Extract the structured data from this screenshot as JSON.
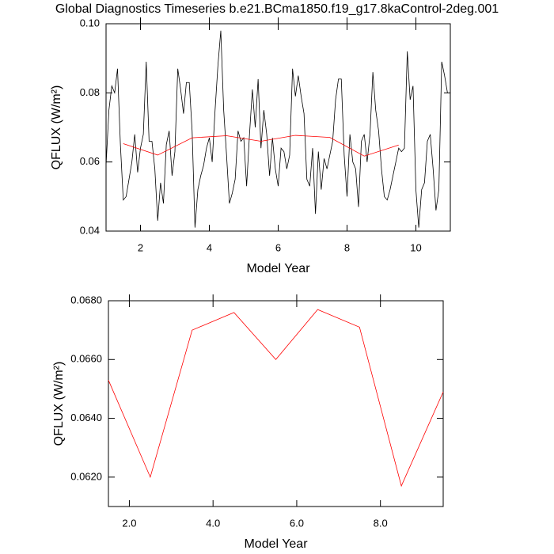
{
  "title": "Global Diagnostics Timeseries b.e21.BCma1850.f19_g17.8kaControl-2deg.001",
  "chart_data": [
    {
      "type": "line",
      "x_label": "Model Year",
      "y_label": "QFLUX (W/m²)",
      "xlim": [
        1,
        11
      ],
      "xticks": [
        2,
        4,
        6,
        8,
        10
      ],
      "ylim": [
        0.04,
        0.1
      ],
      "yticks": [
        0.04,
        0.06,
        0.08,
        {
          "value": 0.1,
          "label": "0.10"
        }
      ],
      "series": [
        {
          "color": "#000000",
          "x": [
            1,
            1.083,
            1.167,
            1.25,
            1.333,
            1.417,
            1.5,
            1.583,
            1.667,
            1.75,
            1.833,
            1.917,
            2,
            2.083,
            2.167,
            2.25,
            2.333,
            2.417,
            2.5,
            2.583,
            2.667,
            2.75,
            2.833,
            2.917,
            3,
            3.083,
            3.167,
            3.25,
            3.333,
            3.417,
            3.5,
            3.583,
            3.667,
            3.75,
            3.833,
            3.917,
            4,
            4.083,
            4.167,
            4.25,
            4.333,
            4.417,
            4.5,
            4.583,
            4.667,
            4.75,
            4.833,
            4.917,
            5,
            5.083,
            5.167,
            5.25,
            5.333,
            5.417,
            5.5,
            5.583,
            5.667,
            5.75,
            5.833,
            5.917,
            6,
            6.083,
            6.167,
            6.25,
            6.333,
            6.417,
            6.5,
            6.583,
            6.667,
            6.75,
            6.833,
            6.917,
            7,
            7.083,
            7.167,
            7.25,
            7.333,
            7.417,
            7.5,
            7.583,
            7.667,
            7.75,
            7.833,
            7.917,
            8,
            8.083,
            8.167,
            8.25,
            8.333,
            8.417,
            8.5,
            8.583,
            8.667,
            8.75,
            8.833,
            8.917,
            9,
            9.083,
            9.167,
            9.25,
            9.333,
            9.417,
            9.5,
            9.583,
            9.667,
            9.75,
            9.833,
            9.917,
            10,
            10.083,
            10.167,
            10.25,
            10.333,
            10.417,
            10.5,
            10.583,
            10.667,
            10.75,
            10.833,
            10.917
          ],
          "values": [
            0.059,
            0.075,
            0.082,
            0.08,
            0.087,
            0.065,
            0.049,
            0.05,
            0.055,
            0.06,
            0.068,
            0.057,
            0.064,
            0.068,
            0.089,
            0.066,
            0.066,
            0.058,
            0.043,
            0.054,
            0.048,
            0.065,
            0.069,
            0.056,
            0.063,
            0.087,
            0.081,
            0.074,
            0.083,
            0.083,
            0.069,
            0.041,
            0.052,
            0.056,
            0.059,
            0.064,
            0.067,
            0.06,
            0.075,
            0.088,
            0.098,
            0.075,
            0.062,
            0.048,
            0.051,
            0.055,
            0.069,
            0.066,
            0.067,
            0.053,
            0.068,
            0.081,
            0.07,
            0.084,
            0.064,
            0.075,
            0.068,
            0.056,
            0.067,
            0.058,
            0.053,
            0.064,
            0.063,
            0.058,
            0.062,
            0.087,
            0.079,
            0.085,
            0.079,
            0.074,
            0.055,
            0.053,
            0.064,
            0.045,
            0.063,
            0.052,
            0.061,
            0.058,
            0.062,
            0.066,
            0.078,
            0.084,
            0.084,
            0.062,
            0.05,
            0.068,
            0.06,
            0.058,
            0.047,
            0.066,
            0.068,
            0.06,
            0.068,
            0.086,
            0.075,
            0.069,
            0.058,
            0.05,
            0.049,
            0.052,
            0.056,
            0.06,
            0.064,
            0.063,
            0.064,
            0.092,
            0.078,
            0.082,
            0.052,
            0.041,
            0.052,
            0.054,
            0.066,
            0.068,
            0.058,
            0.046,
            0.052,
            0.089,
            0.085,
            0.08
          ]
        },
        {
          "color": "#ff0000",
          "x": [
            1.5,
            2.5,
            3.5,
            4.5,
            5.5,
            6.5,
            7.5,
            8.5,
            9.5
          ],
          "values": [
            0.0653,
            0.062,
            0.067,
            0.0676,
            0.066,
            0.0677,
            0.0671,
            0.0617,
            0.0649
          ]
        }
      ]
    },
    {
      "type": "line",
      "x_label": "Model Year",
      "y_label": "QFLUX (W/m²)",
      "xlim": [
        1.5,
        9.5
      ],
      "xticks": [
        {
          "value": 2,
          "label": "2.0"
        },
        {
          "value": 4,
          "label": "4.0"
        },
        {
          "value": 6,
          "label": "6.0"
        },
        {
          "value": 8,
          "label": "8.0"
        }
      ],
      "ylim": [
        0.061,
        0.068
      ],
      "yticks": [
        {
          "value": 0.062,
          "label": "0.0620"
        },
        {
          "value": 0.064,
          "label": "0.0640"
        },
        {
          "value": 0.066,
          "label": "0.0660"
        },
        {
          "value": 0.068,
          "label": "0.0680"
        }
      ],
      "series": [
        {
          "color": "#ff0000",
          "x": [
            1.5,
            2.5,
            3.5,
            4.5,
            5.5,
            6.5,
            7.5,
            8.5,
            9.5
          ],
          "values": [
            0.0653,
            0.062,
            0.067,
            0.0676,
            0.066,
            0.0677,
            0.0671,
            0.0617,
            0.0649
          ]
        }
      ]
    }
  ]
}
